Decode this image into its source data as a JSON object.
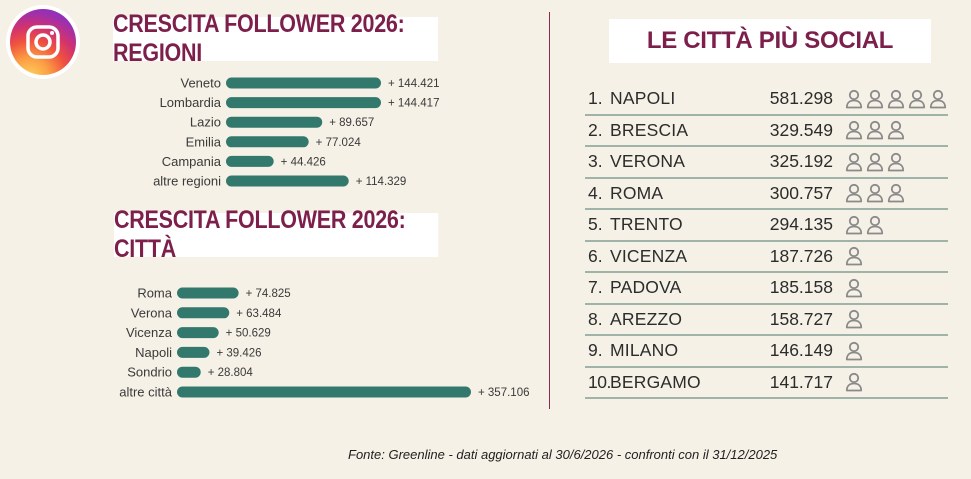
{
  "logo": {
    "icon": "instagram-icon"
  },
  "colors": {
    "bar": "#33786c",
    "title": "#7d1f4b",
    "background": "#f5f1e6",
    "divider": "#8a2a55",
    "person_icon": "#8a8a8a"
  },
  "titles": {
    "regioni": "CRESCITA FOLLOWER 2026: REGIONI",
    "citta": "CRESCITA FOLLOWER 2026: CITTÀ",
    "social": "LE CITTÀ PIÙ SOCIAL"
  },
  "chart_data": [
    {
      "type": "bar",
      "orientation": "horizontal",
      "title": "CRESCITA FOLLOWER 2026: REGIONI",
      "categories": [
        "Veneto",
        "Lombardia",
        "Lazio",
        "Emilia",
        "Campania",
        "altre regioni"
      ],
      "values": [
        144421,
        144417,
        89657,
        77024,
        44426,
        114329
      ],
      "labels": [
        "+ 144.421",
        "+ 144.417",
        "+ 89.657",
        "+ 77.024",
        "+ 44.426",
        "+ 114.329"
      ]
    },
    {
      "type": "bar",
      "orientation": "horizontal",
      "title": "CRESCITA FOLLOWER 2026: CITTÀ",
      "categories": [
        "Roma",
        "Verona",
        "Vicenza",
        "Napoli",
        "Sondrio",
        "altre città"
      ],
      "values": [
        74825,
        63484,
        50629,
        39426,
        28804,
        357106
      ],
      "labels": [
        "+ 74.825",
        "+ 63.484",
        "+ 50.629",
        "+ 39.426",
        "+ 28.804",
        "+ 357.106"
      ]
    },
    {
      "type": "table",
      "title": "LE CITTÀ PIÙ SOCIAL",
      "rows": [
        {
          "rank": "1.",
          "city": "NAPOLI",
          "value": "581.298",
          "icons": 5
        },
        {
          "rank": "2.",
          "city": "BRESCIA",
          "value": "329.549",
          "icons": 3
        },
        {
          "rank": "3.",
          "city": "VERONA",
          "value": "325.192",
          "icons": 3
        },
        {
          "rank": "4.",
          "city": "ROMA",
          "value": "300.757",
          "icons": 3
        },
        {
          "rank": "5.",
          "city": "TRENTO",
          "value": "294.135",
          "icons": 2
        },
        {
          "rank": "6.",
          "city": "VICENZA",
          "value": "187.726",
          "icons": 1
        },
        {
          "rank": "7.",
          "city": "PADOVA",
          "value": "185.158",
          "icons": 1
        },
        {
          "rank": "8.",
          "city": "AREZZO",
          "value": "158.727",
          "icons": 1
        },
        {
          "rank": "9.",
          "city": "MILANO",
          "value": "146.149",
          "icons": 1
        },
        {
          "rank": "10.",
          "city": "BERGAMO",
          "value": "141.717",
          "icons": 1
        }
      ]
    }
  ],
  "source": "Fonte: Greenline - dati aggiornati al 30/6/2026 - confronti con il 31/12/2025"
}
